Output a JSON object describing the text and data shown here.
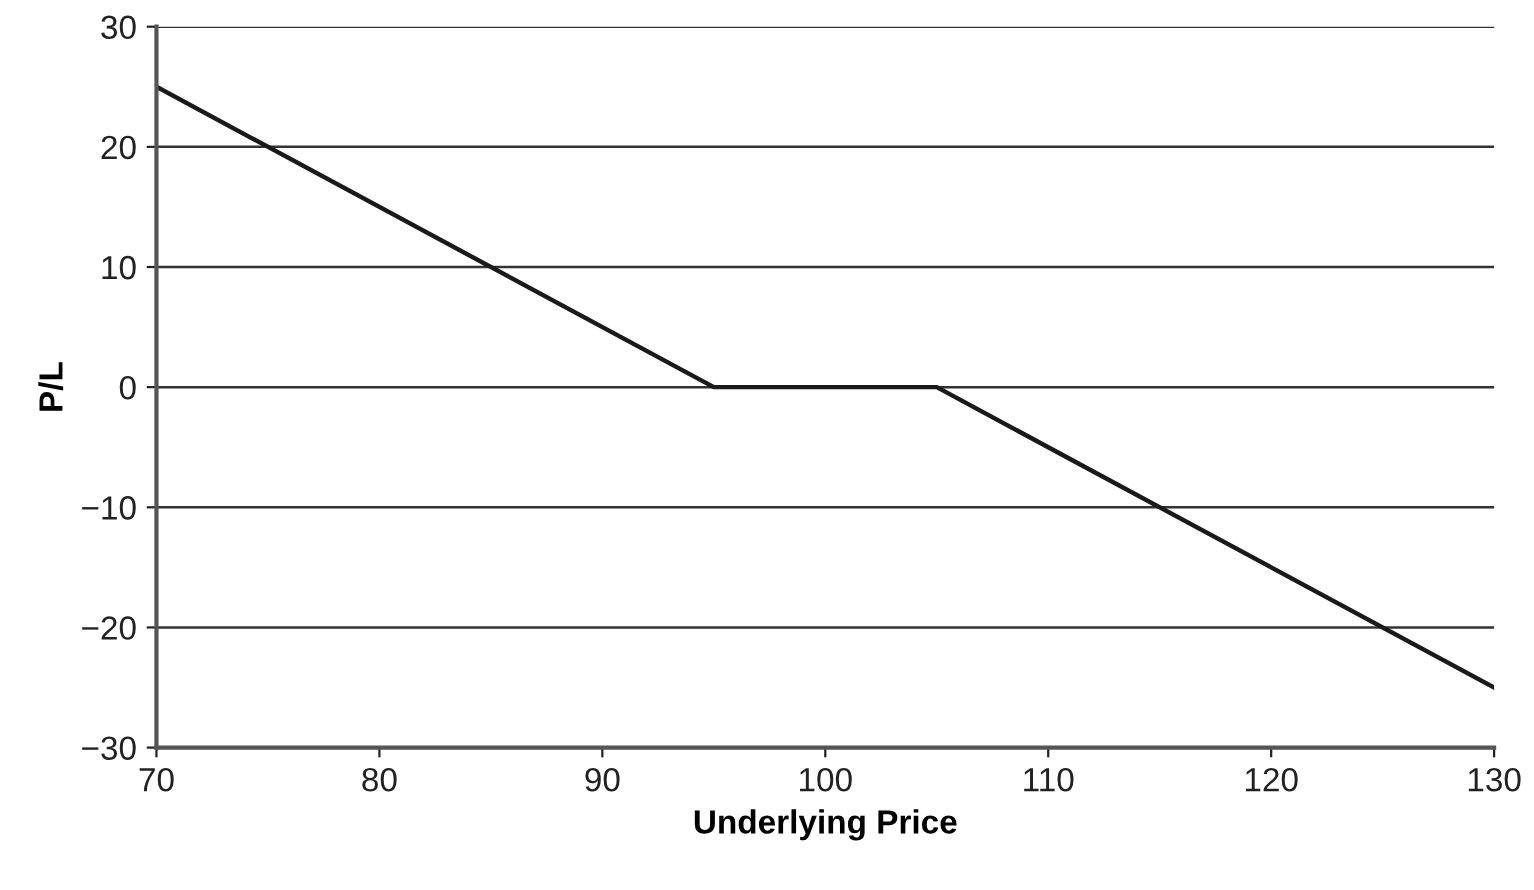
{
  "chart_data": {
    "type": "line",
    "xlabel": "Underlying Price",
    "ylabel": "P/L",
    "x": [
      70,
      95,
      105,
      130
    ],
    "series": [
      {
        "color": "#1a1a1a",
        "values": [
          25,
          0,
          0,
          -25
        ]
      }
    ],
    "xlim": [
      70,
      130
    ],
    "xticks": [
      70,
      80,
      90,
      100,
      110,
      120,
      130
    ],
    "ylim": [
      -30,
      30
    ],
    "yticks": [
      {
        "value": -30,
        "label": "−30"
      },
      {
        "value": -20,
        "label": "−20"
      },
      {
        "value": -10,
        "label": "−10"
      },
      0,
      10,
      20,
      30
    ],
    "grid": "y",
    "legend": false,
    "marker": "none",
    "line_style": "solid"
  }
}
